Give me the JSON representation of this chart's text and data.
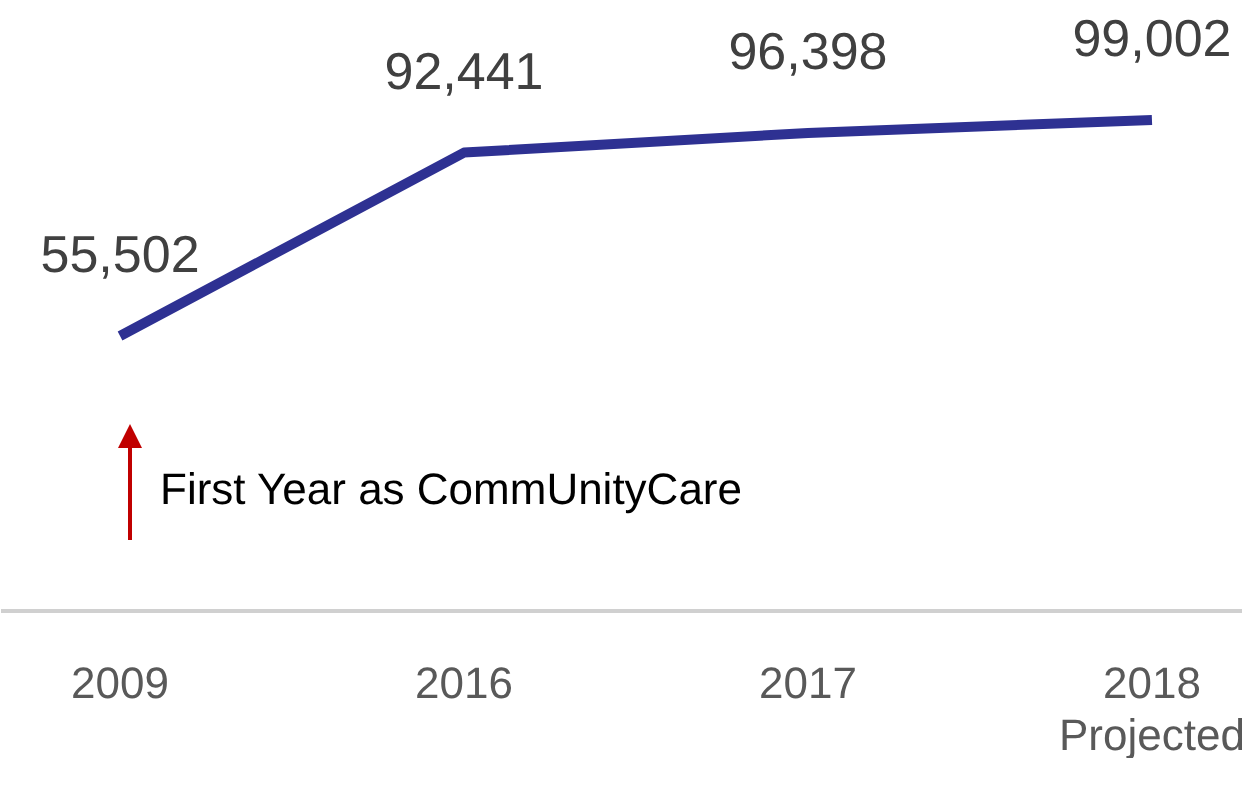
{
  "chart_data": {
    "type": "line",
    "categories": [
      "2009",
      "2016",
      "2017",
      "2018 Projected"
    ],
    "series": [
      {
        "color": "#2e3192",
        "values": [
          55502,
          92441,
          96398,
          99002
        ],
        "value_labels": [
          "55,502",
          "92,441",
          "96,398",
          "99,002"
        ]
      }
    ],
    "grid": false,
    "tick_labels": "x",
    "marker": "none",
    "line_style": "solid",
    "annotations": [
      "First Year as CommUnityCare"
    ]
  }
}
